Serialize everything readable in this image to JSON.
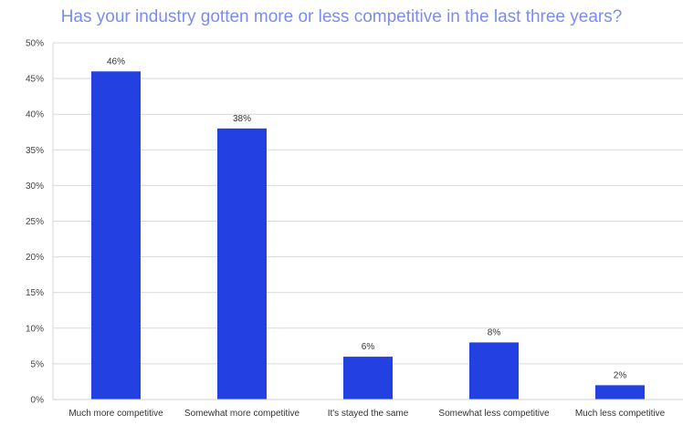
{
  "chart_data": {
    "type": "bar",
    "title": "Has your industry gotten more or less competitive in the last three years?",
    "categories": [
      "Much more competitive",
      "Somewhat more competitive",
      "It's stayed the same",
      "Somewhat less competitive",
      "Much less competitive"
    ],
    "values": [
      46,
      38,
      6,
      8,
      2
    ],
    "data_labels": [
      "46%",
      "38%",
      "6%",
      "8%",
      "2%"
    ],
    "xlabel": "",
    "ylabel": "",
    "ylim": [
      0,
      50
    ],
    "yticks": [
      "0%",
      "5%",
      "10%",
      "15%",
      "20%",
      "25%",
      "30%",
      "35%",
      "40%",
      "45%",
      "50%"
    ],
    "grid": true,
    "bar_color": "#2341e0",
    "title_color": "#7b8cf0"
  }
}
